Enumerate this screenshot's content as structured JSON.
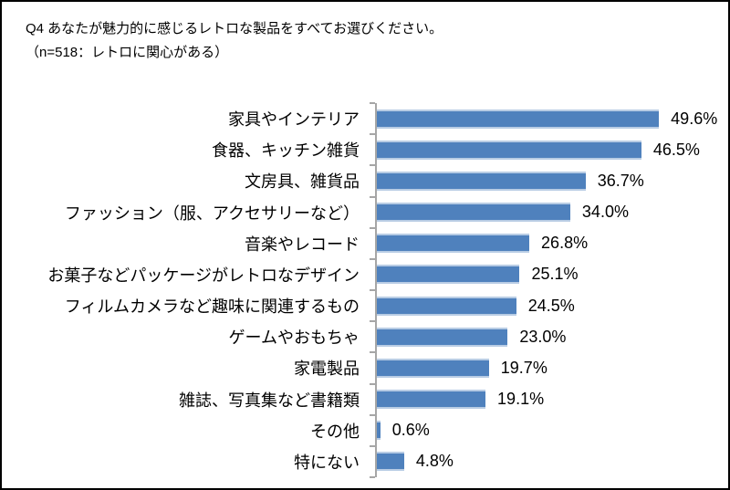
{
  "header": {
    "title": "Q4 あなたが魅力的に感じるレトロな製品をすべてお選びください。",
    "subtitle": "（n=518：レトロに関心がある）"
  },
  "chart_data": {
    "type": "bar",
    "orientation": "horizontal",
    "title": "Q4 あなたが魅力的に感じるレトロな製品をすべてお選びください。",
    "subtitle": "（n=518：レトロに関心がある）",
    "categories": [
      "家具やインテリア",
      "食器、キッチン雑貨",
      "文房具、雑貨品",
      "ファッション（服、アクセサリーなど）",
      "音楽やレコード",
      "お菓子などパッケージがレトロなデザイン",
      "フィルムカメラなど趣味に関連するもの",
      "ゲームやおもちゃ",
      "家電製品",
      "雑誌、写真集など書籍類",
      "その他",
      "特にない"
    ],
    "values": [
      49.6,
      46.5,
      36.7,
      34.0,
      26.8,
      25.1,
      24.5,
      23.0,
      19.7,
      19.1,
      0.6,
      4.8
    ],
    "value_labels": [
      "49.6%",
      "46.5%",
      "36.7%",
      "34.0%",
      "26.8%",
      "25.1%",
      "24.5%",
      "23.0%",
      "19.7%",
      "19.1%",
      "0.6%",
      "4.8%"
    ],
    "xlim": [
      0,
      60
    ],
    "xlabel": "",
    "ylabel": "",
    "grid": false,
    "legend": null,
    "bar_color": "#4F81BD",
    "bar_edge_color": "#B8CCE4",
    "axis_color": "#A6A6A6",
    "value_label_position": "right-of-bar"
  }
}
